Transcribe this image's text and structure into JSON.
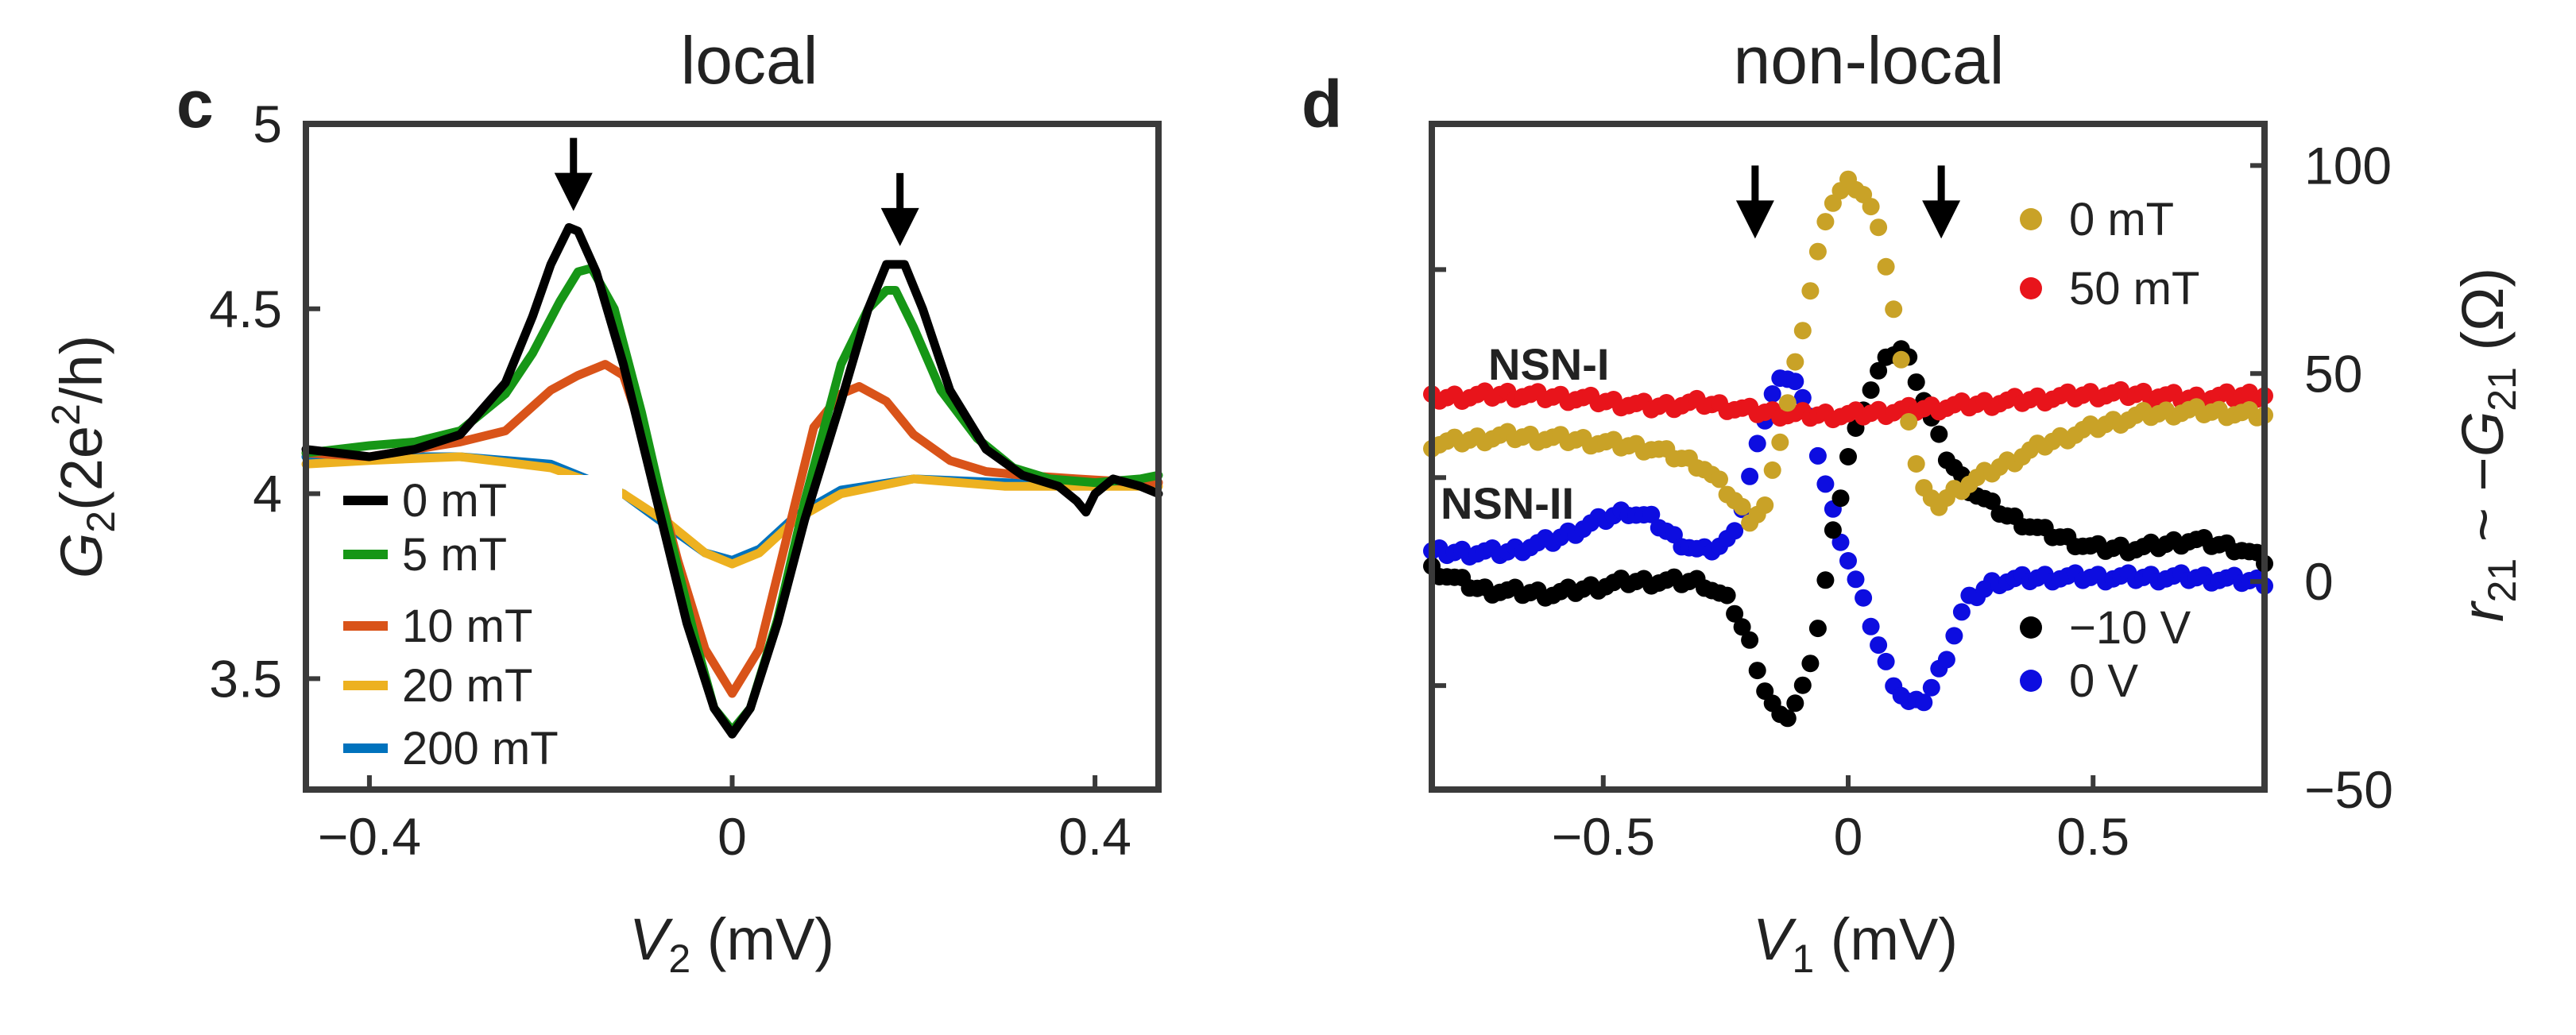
{
  "chart_data": [
    {
      "panel": "c",
      "type": "line",
      "title": "local",
      "xlabel": {
        "var": "V",
        "sub": "2",
        "rest": " (mV)"
      },
      "ylabel": {
        "var": "G",
        "sub": "2",
        "rest": "(2e",
        "sup": "2",
        "tail": "/h)"
      },
      "xlim": [
        -0.47,
        0.47
      ],
      "ylim": [
        3.2,
        5.0
      ],
      "xticks": [
        {
          "v": -0.4,
          "label": "−0.4"
        },
        {
          "v": 0,
          "label": "0"
        },
        {
          "v": 0.4,
          "label": "0.4"
        }
      ],
      "yticks": [
        {
          "v": 3.5,
          "label": "3.5"
        },
        {
          "v": 4,
          "label": "4"
        },
        {
          "v": 4.5,
          "label": "4.5"
        },
        {
          "v": 5,
          "label": "5"
        }
      ],
      "arrows": [
        -0.175,
        0.185
      ],
      "series": [
        {
          "name": "0 mT",
          "color": "#000000",
          "x": [
            -0.47,
            -0.4,
            -0.35,
            -0.3,
            -0.25,
            -0.22,
            -0.2,
            -0.18,
            -0.17,
            -0.15,
            -0.12,
            -0.08,
            -0.05,
            -0.02,
            0,
            0.02,
            0.05,
            0.08,
            0.12,
            0.15,
            0.17,
            0.19,
            0.21,
            0.24,
            0.28,
            0.32,
            0.36,
            0.38,
            0.39,
            0.4,
            0.42,
            0.45,
            0.47
          ],
          "y": [
            4.12,
            4.1,
            4.12,
            4.16,
            4.3,
            4.48,
            4.62,
            4.72,
            4.71,
            4.6,
            4.35,
            3.95,
            3.65,
            3.42,
            3.35,
            3.42,
            3.65,
            3.93,
            4.25,
            4.5,
            4.62,
            4.62,
            4.5,
            4.28,
            4.12,
            4.05,
            4.02,
            3.98,
            3.95,
            4.0,
            4.04,
            4.02,
            4.0
          ]
        },
        {
          "name": "5 mT",
          "color": "#169616",
          "x": [
            -0.47,
            -0.4,
            -0.35,
            -0.3,
            -0.25,
            -0.22,
            -0.19,
            -0.17,
            -0.155,
            -0.13,
            -0.1,
            -0.07,
            -0.04,
            -0.02,
            0,
            0.02,
            0.05,
            0.08,
            0.12,
            0.15,
            0.17,
            0.18,
            0.2,
            0.23,
            0.27,
            0.31,
            0.35,
            0.4,
            0.45,
            0.47
          ],
          "y": [
            4.11,
            4.13,
            4.14,
            4.17,
            4.27,
            4.38,
            4.52,
            4.6,
            4.61,
            4.5,
            4.22,
            3.9,
            3.6,
            3.42,
            3.36,
            3.42,
            3.66,
            3.98,
            4.35,
            4.5,
            4.55,
            4.55,
            4.45,
            4.28,
            4.15,
            4.07,
            4.04,
            4.03,
            4.04,
            4.05
          ]
        },
        {
          "name": "10 mT",
          "color": "#d95319",
          "x": [
            -0.47,
            -0.4,
            -0.3,
            -0.25,
            -0.2,
            -0.17,
            -0.14,
            -0.12,
            -0.09,
            -0.06,
            -0.03,
            0,
            0.03,
            0.06,
            0.09,
            0.12,
            0.14,
            0.17,
            0.2,
            0.24,
            0.28,
            0.32,
            0.38,
            0.45,
            0.47
          ],
          "y": [
            4.11,
            4.1,
            4.14,
            4.17,
            4.28,
            4.32,
            4.35,
            4.32,
            4.1,
            3.82,
            3.58,
            3.46,
            3.58,
            3.88,
            4.18,
            4.27,
            4.29,
            4.25,
            4.16,
            4.09,
            4.06,
            4.05,
            4.04,
            4.03,
            4.03
          ]
        },
        {
          "name": "20 mT",
          "color": "#edb120",
          "x": [
            -0.47,
            -0.4,
            -0.3,
            -0.2,
            -0.12,
            -0.07,
            -0.03,
            0,
            0.03,
            0.07,
            0.12,
            0.2,
            0.3,
            0.4,
            0.47
          ],
          "y": [
            4.08,
            4.09,
            4.1,
            4.07,
            4.0,
            3.92,
            3.84,
            3.81,
            3.84,
            3.93,
            4.0,
            4.04,
            4.02,
            4.02,
            4.02
          ]
        },
        {
          "name": "200 mT",
          "color": "#0072bd",
          "x": [
            -0.47,
            -0.4,
            -0.3,
            -0.2,
            -0.12,
            -0.07,
            -0.03,
            0,
            0.03,
            0.07,
            0.12,
            0.2,
            0.3,
            0.4,
            0.47
          ],
          "y": [
            4.1,
            4.1,
            4.1,
            4.08,
            4.0,
            3.91,
            3.84,
            3.82,
            3.85,
            3.94,
            4.01,
            4.04,
            4.03,
            4.02,
            4.03
          ]
        }
      ]
    },
    {
      "panel": "d",
      "type": "scatter",
      "title": "non-local",
      "xlabel": {
        "var": "V",
        "sub": "1",
        "rest": " (mV)"
      },
      "ylabel_right": {
        "a": "r",
        "asub": "21",
        "mid": " ~ −",
        "b": "G",
        "bsub": "21",
        "rest": " (Ω)"
      },
      "xlim": [
        -0.85,
        0.85
      ],
      "ylim": [
        -50,
        110
      ],
      "xticks": [
        {
          "v": -0.5,
          "label": "−0.5"
        },
        {
          "v": 0,
          "label": "0"
        },
        {
          "v": 0.5,
          "label": "0.5"
        }
      ],
      "yticks": [
        {
          "v": -50,
          "label": "−50"
        },
        {
          "v": 0,
          "label": "0"
        },
        {
          "v": 50,
          "label": "50"
        },
        {
          "v": 100,
          "label": "100"
        }
      ],
      "left_minor_ticks": [
        -25,
        25,
        75
      ],
      "arrows": [
        -0.19,
        0.19
      ],
      "annotations": [
        "NSN-I",
        "NSN-II"
      ],
      "series": [
        {
          "name": "0 mT",
          "group": "NSN-I",
          "color": "#c9a227",
          "x": [
            -0.85,
            -0.7,
            -0.55,
            -0.4,
            -0.3,
            -0.25,
            -0.2,
            -0.17,
            -0.15,
            -0.12,
            -0.09,
            -0.06,
            -0.03,
            0,
            0.02,
            0.04,
            0.06,
            0.08,
            0.1,
            0.12,
            0.14,
            0.16,
            0.18,
            0.22,
            0.3,
            0.4,
            0.5,
            0.6,
            0.7,
            0.85
          ],
          "y": [
            33,
            35,
            34,
            32,
            28,
            22,
            15,
            18,
            28,
            45,
            63,
            80,
            92,
            96,
            95,
            92,
            85,
            75,
            60,
            42,
            28,
            20,
            18,
            22,
            27,
            33,
            37,
            40,
            41,
            40
          ]
        },
        {
          "name": "50 mT",
          "group": "NSN-I",
          "color": "#e8141b",
          "x": [
            -0.85,
            -0.7,
            -0.55,
            -0.4,
            -0.3,
            -0.2,
            -0.1,
            0,
            0.1,
            0.2,
            0.3,
            0.4,
            0.5,
            0.6,
            0.7,
            0.85
          ],
          "y": [
            44,
            45,
            44,
            42,
            43,
            41,
            40,
            40,
            41,
            42,
            43,
            44,
            45,
            45,
            44,
            45
          ]
        },
        {
          "name": "−10 V",
          "group": "NSN-II",
          "color": "#000000",
          "x": [
            -0.85,
            -0.75,
            -0.6,
            -0.45,
            -0.3,
            -0.24,
            -0.2,
            -0.17,
            -0.14,
            -0.12,
            -0.09,
            -0.06,
            -0.03,
            0,
            0.03,
            0.06,
            0.09,
            0.11,
            0.13,
            0.16,
            0.2,
            0.25,
            0.32,
            0.4,
            0.5,
            0.6,
            0.7,
            0.8,
            0.85
          ],
          "y": [
            3,
            -2,
            -3,
            0,
            0,
            -5,
            -15,
            -26,
            -33,
            -32,
            -25,
            -10,
            12,
            30,
            42,
            50,
            55,
            56,
            52,
            42,
            30,
            22,
            16,
            12,
            8,
            8,
            10,
            8,
            5
          ]
        },
        {
          "name": "0 V",
          "group": "NSN-II",
          "color": "#0d0de0",
          "x": [
            -0.85,
            -0.7,
            -0.6,
            -0.5,
            -0.45,
            -0.4,
            -0.35,
            -0.3,
            -0.25,
            -0.22,
            -0.19,
            -0.16,
            -0.13,
            -0.11,
            -0.08,
            -0.05,
            -0.02,
            0.01,
            0.04,
            0.07,
            0.1,
            0.13,
            0.16,
            0.2,
            0.24,
            0.3,
            0.4,
            0.5,
            0.7,
            0.85
          ],
          "y": [
            7,
            7,
            10,
            15,
            17,
            15,
            10,
            7,
            9,
            16,
            30,
            44,
            50,
            49,
            40,
            25,
            12,
            2,
            -8,
            -18,
            -26,
            -30,
            -28,
            -18,
            -5,
            0,
            1,
            1,
            1,
            0
          ]
        }
      ]
    }
  ]
}
